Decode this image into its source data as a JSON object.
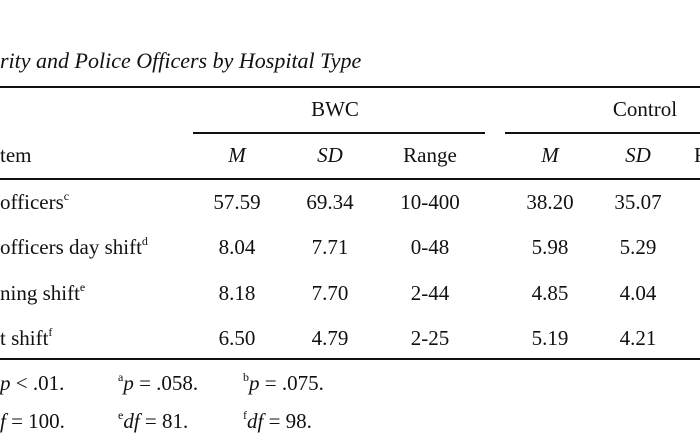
{
  "table": {
    "title": "rity and Police Officers by Hospital Type",
    "groups": {
      "bwc": "BWC",
      "control": "Control"
    },
    "columns": {
      "item": "tem",
      "m1": "M",
      "sd1": "SD",
      "range1": "Range",
      "m2": "M",
      "sd2": "SD"
    },
    "rows": [
      {
        "label": "officers",
        "fn": "c",
        "bwc_m": "57.59",
        "bwc_sd": "69.34",
        "bwc_range": "10-400",
        "ctrl_m": "38.20",
        "ctrl_sd": "35.07"
      },
      {
        "label": "officers day shift",
        "fn": "d",
        "bwc_m": "8.04",
        "bwc_sd": "7.71",
        "bwc_range": "0-48",
        "ctrl_m": "5.98",
        "ctrl_sd": "5.29"
      },
      {
        "label": "ning shift",
        "fn": "e",
        "bwc_m": "8.18",
        "bwc_sd": "7.70",
        "bwc_range": "2-44",
        "ctrl_m": "4.85",
        "ctrl_sd": "4.04"
      },
      {
        "label": "t shift",
        "fn": "f",
        "bwc_m": "6.50",
        "bwc_sd": "4.79",
        "bwc_range": "2-25",
        "ctrl_m": "5.19",
        "ctrl_sd": "4.21"
      }
    ]
  },
  "notes": {
    "line1": [
      {
        "sup": "",
        "var": "p",
        "text": " < .01."
      },
      {
        "sup": "a",
        "var": "p",
        "text": " = .058."
      },
      {
        "sup": "b",
        "var": "p",
        "text": " = .075."
      }
    ],
    "line2": [
      {
        "sup": "",
        "var": "f",
        "text": " = 100."
      },
      {
        "sup": "e",
        "var": "df",
        "text": " = 81."
      },
      {
        "sup": "f",
        "var": "df",
        "text": " = 98."
      }
    ]
  }
}
